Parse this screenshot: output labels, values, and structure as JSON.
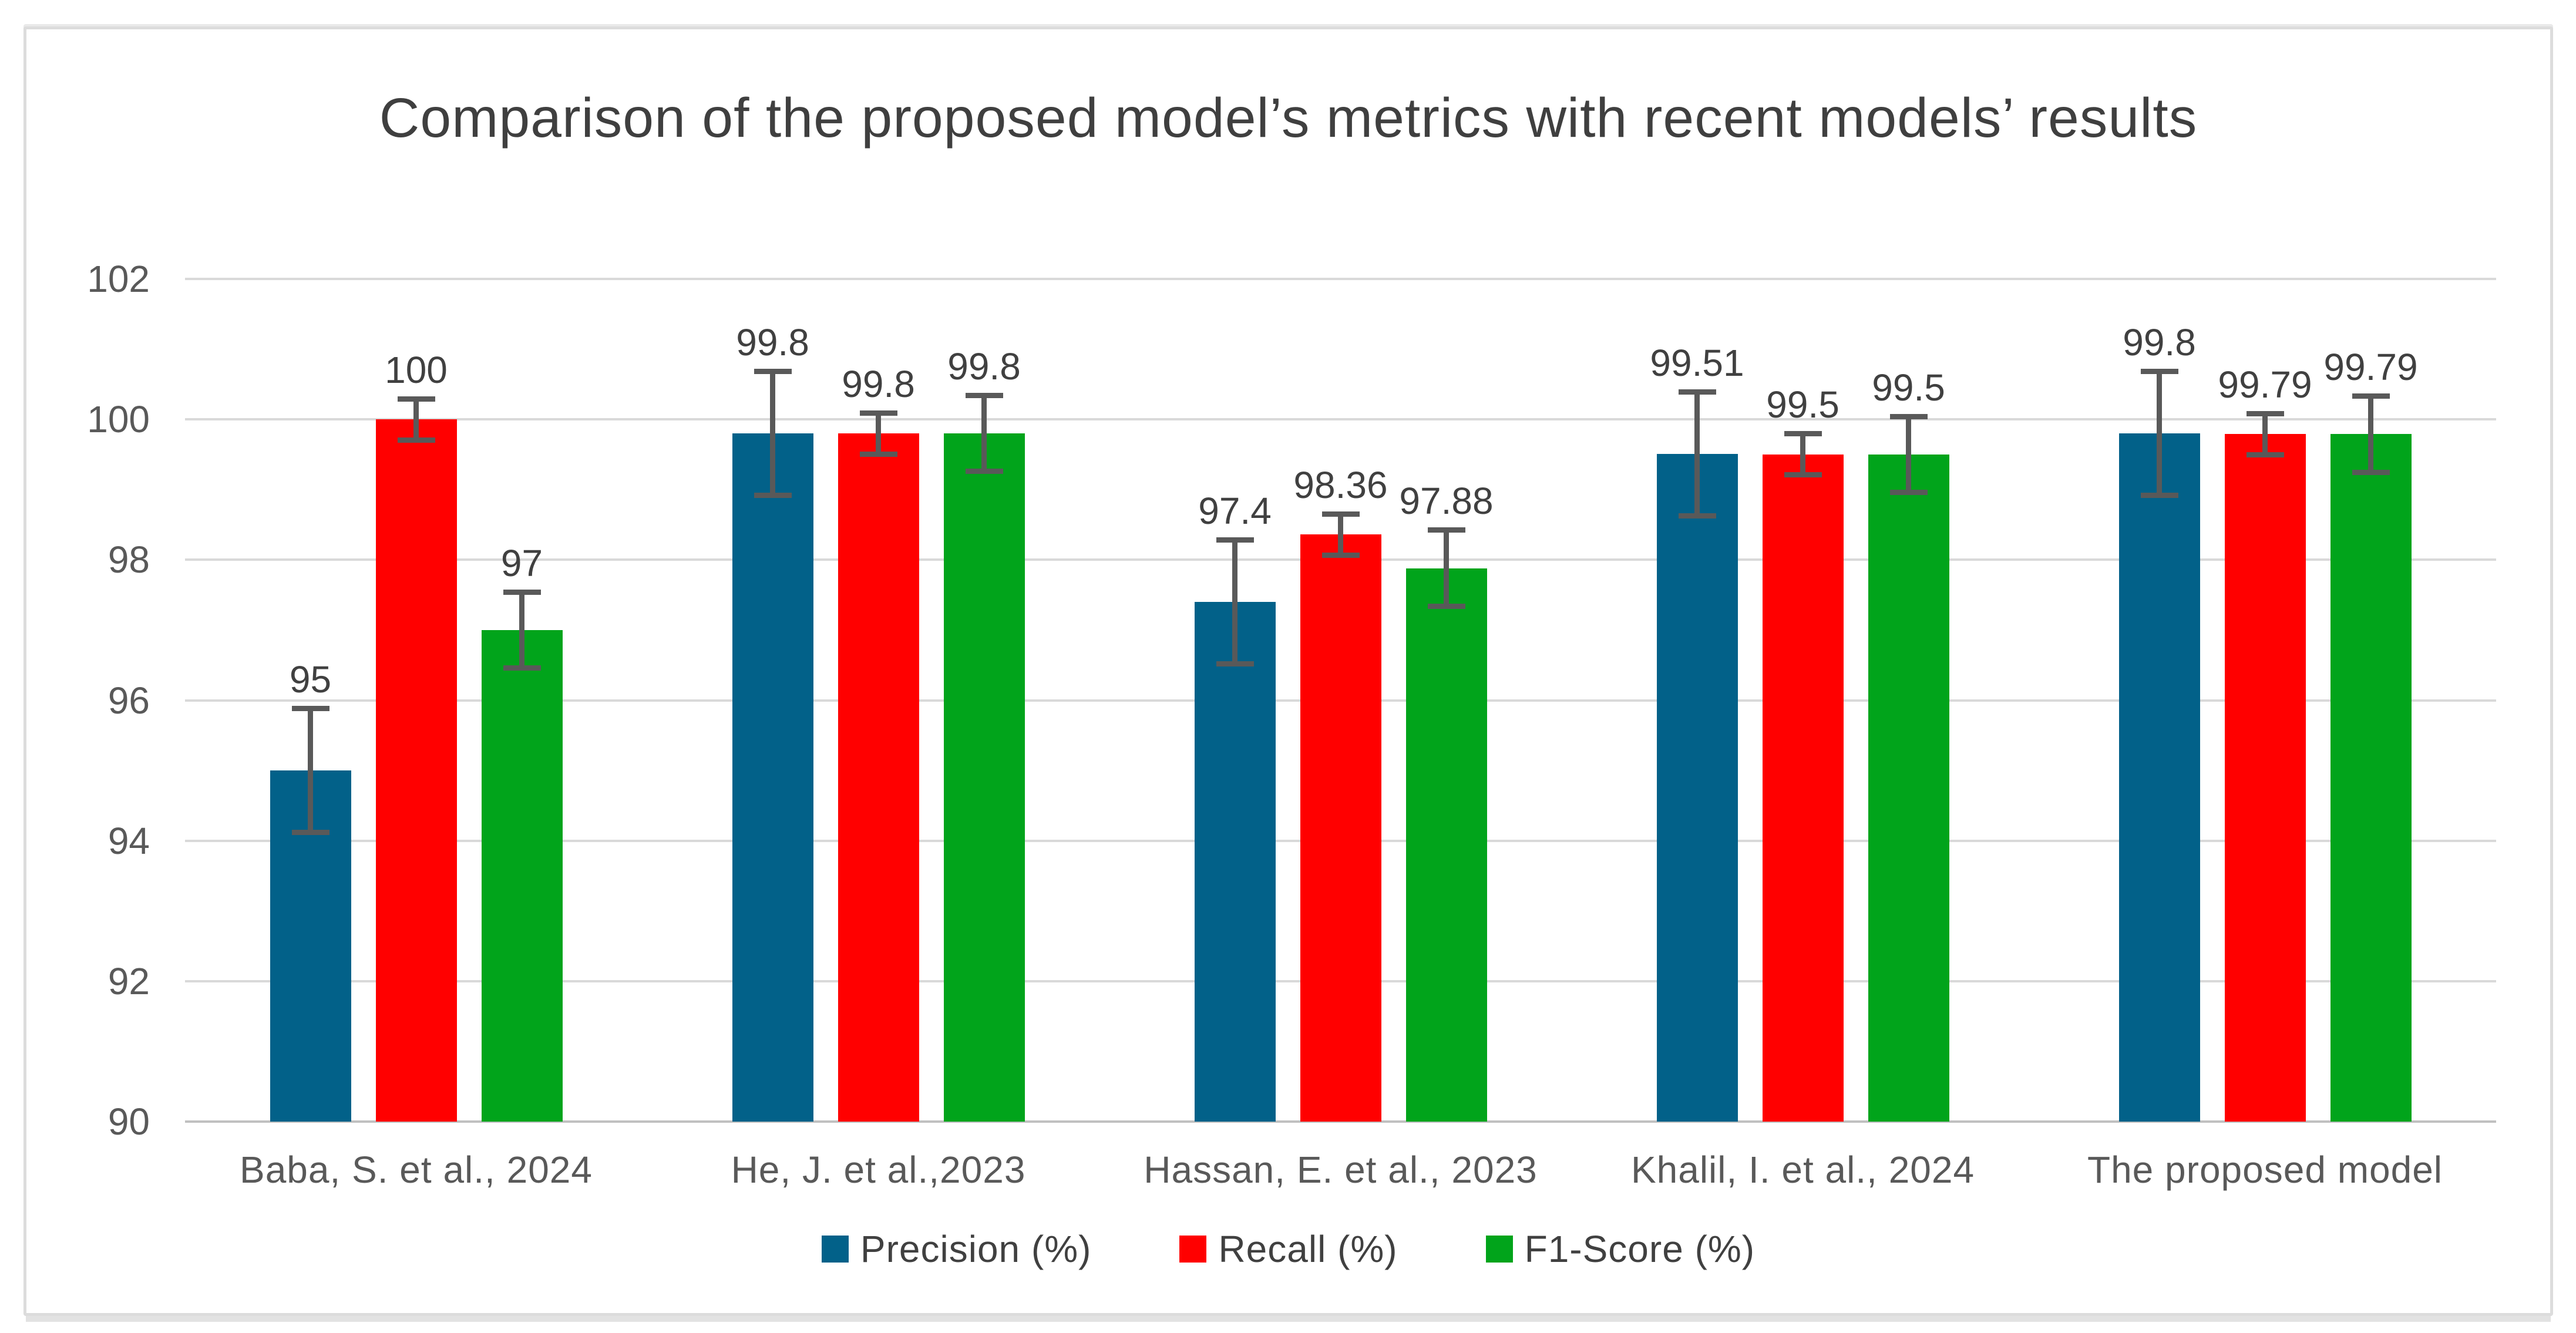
{
  "chart_data": {
    "type": "bar",
    "title": "Comparison of the proposed model’s metrics with recent models’ results",
    "categories": [
      "Baba, S. et al., 2024",
      "He, J. et al.,2023",
      "Hassan, E. et al., 2023",
      "Khalil, I. et al., 2024",
      "The proposed model"
    ],
    "series": [
      {
        "name": "Precision (%)",
        "color": "#026189",
        "values": [
          95,
          99.8,
          97.4,
          99.51,
          99.8
        ],
        "labels": [
          "95",
          "99.8",
          "97.4",
          "99.51",
          "99.8"
        ],
        "error": 0.92
      },
      {
        "name": "Recall (%)",
        "color": "#FF0000",
        "values": [
          100,
          99.8,
          98.36,
          99.5,
          99.79
        ],
        "labels": [
          "100",
          "99.8",
          "98.36",
          "99.5",
          "99.79"
        ],
        "error": 0.33
      },
      {
        "name": "F1-Score (%)",
        "color": "#01A41B",
        "values": [
          97,
          99.8,
          97.88,
          99.5,
          99.79
        ],
        "labels": [
          "97",
          "99.8",
          "97.88",
          "99.5",
          "99.79"
        ],
        "error": 0.58
      }
    ],
    "ylim": [
      90,
      102
    ],
    "yticks": [
      "90",
      "92",
      "94",
      "96",
      "98",
      "100",
      "102"
    ],
    "xlabel": "",
    "ylabel": "",
    "grid": "horizontal",
    "legend_position": "bottom",
    "error_bars": true
  },
  "colors": {
    "gridline": "#d9d9d9",
    "axis_line": "#c0c0c0",
    "tick_label": "#595959",
    "title_text": "#3f3f3f",
    "value_label": "#404040",
    "error_bar": "#595959",
    "card_border": "#dcdcdc",
    "background": "#ffffff"
  }
}
